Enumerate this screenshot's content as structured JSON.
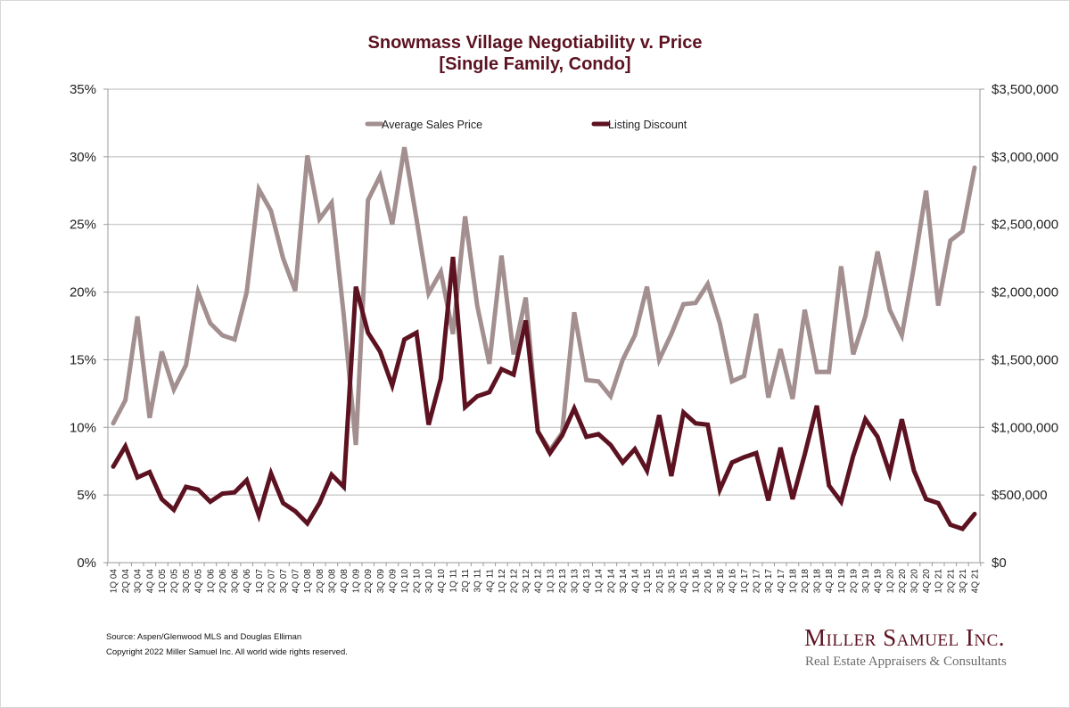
{
  "chart_data": {
    "type": "line",
    "title": "Snowmass Village Negotiability v. Price",
    "subtitle": "[Single Family, Condo]",
    "xlabel": "",
    "ylabel_left": "",
    "ylabel_right": "",
    "categories": [
      "1Q 04",
      "2Q 04",
      "3Q 04",
      "4Q 04",
      "1Q 05",
      "2Q 05",
      "3Q 05",
      "4Q 05",
      "1Q 06",
      "2Q 06",
      "3Q 06",
      "4Q 06",
      "1Q 07",
      "2Q 07",
      "3Q 07",
      "4Q 07",
      "1Q 08",
      "2Q 08",
      "3Q 08",
      "4Q 08",
      "1Q 09",
      "2Q 09",
      "3Q 09",
      "4Q 09",
      "1Q 10",
      "2Q 10",
      "3Q 10",
      "4Q 10",
      "1Q 11",
      "2Q 11",
      "3Q 11",
      "4Q 11",
      "1Q 12",
      "2Q 12",
      "3Q 12",
      "4Q 12",
      "1Q 13",
      "2Q 13",
      "3Q 13",
      "4Q 13",
      "1Q 14",
      "2Q 14",
      "3Q 14",
      "4Q 14",
      "1Q 15",
      "2Q 15",
      "3Q 15",
      "4Q 15",
      "1Q 16",
      "2Q 16",
      "3Q 16",
      "4Q 16",
      "1Q 17",
      "2Q 17",
      "3Q 17",
      "4Q 17",
      "1Q 18",
      "2Q 18",
      "3Q 18",
      "4Q 18",
      "1Q 19",
      "2Q 19",
      "3Q 19",
      "4Q 19",
      "1Q 20",
      "2Q 20",
      "3Q 20",
      "4Q 20",
      "1Q 21",
      "2Q 21",
      "3Q 21",
      "4Q 21"
    ],
    "series": [
      {
        "name": "Average Sales Price",
        "axis": "right",
        "color": "#a38f8f",
        "values": [
          1030000,
          1200000,
          1820000,
          1070000,
          1560000,
          1280000,
          1460000,
          2000000,
          1770000,
          1680000,
          1650000,
          2000000,
          2760000,
          2600000,
          2250000,
          2010000,
          3010000,
          2540000,
          2660000,
          1830000,
          870000,
          2680000,
          2860000,
          2500000,
          3070000,
          2540000,
          1990000,
          2150000,
          1690000,
          2560000,
          1900000,
          1470000,
          2270000,
          1540000,
          1960000,
          970000,
          830000,
          960000,
          1850000,
          1350000,
          1340000,
          1230000,
          1500000,
          1680000,
          2040000,
          1500000,
          1690000,
          1910000,
          1920000,
          2060000,
          1770000,
          1340000,
          1380000,
          1840000,
          1220000,
          1580000,
          1210000,
          1870000,
          1410000,
          1410000,
          2190000,
          1540000,
          1820000,
          2300000,
          1870000,
          1680000,
          2190000,
          2750000,
          1900000,
          2380000,
          2450000,
          2920000
        ]
      },
      {
        "name": "Listing Discount",
        "axis": "left",
        "color": "#5c1220",
        "values": [
          7.1,
          8.6,
          6.3,
          6.7,
          4.7,
          3.9,
          5.6,
          5.4,
          4.5,
          5.1,
          5.2,
          6.1,
          3.5,
          6.6,
          4.4,
          3.8,
          2.9,
          4.4,
          6.5,
          5.6,
          20.4,
          17.0,
          15.6,
          13.1,
          16.5,
          17.0,
          10.2,
          13.6,
          22.6,
          11.5,
          12.3,
          12.6,
          14.3,
          13.9,
          17.9,
          9.7,
          8.1,
          9.4,
          11.4,
          9.3,
          9.5,
          8.7,
          7.4,
          8.4,
          6.8,
          10.9,
          6.4,
          11.1,
          10.3,
          10.2,
          5.4,
          7.4,
          7.8,
          8.1,
          4.6,
          8.5,
          4.7,
          8.0,
          11.6,
          5.7,
          4.5,
          7.9,
          10.6,
          9.3,
          6.6,
          10.6,
          6.8,
          4.7,
          4.4,
          2.8,
          2.5,
          3.6
        ]
      }
    ],
    "y_left": {
      "ylim": [
        0,
        35
      ],
      "ticks": [
        "0%",
        "5%",
        "10%",
        "15%",
        "20%",
        "25%",
        "30%",
        "35%"
      ]
    },
    "y_right": {
      "ylim": [
        0,
        3500000
      ],
      "ticks": [
        "$0",
        "$500,000",
        "$1,000,000",
        "$1,500,000",
        "$2,000,000",
        "$2,500,000",
        "$3,000,000",
        "$3,500,000"
      ]
    },
    "grid": true,
    "legend": {
      "placement": "top-center",
      "entries": [
        "Average Sales Price",
        "Listing Discount"
      ]
    }
  },
  "footer": {
    "source": "Source: Aspen/Glenwood MLS and Douglas Elliman",
    "copyright": "Copyright 2022 Miller Samuel Inc.  All world wide rights reserved."
  },
  "logo": {
    "name": "Miller Samuel Inc.",
    "tagline": "Real Estate Appraisers & Consultants"
  }
}
